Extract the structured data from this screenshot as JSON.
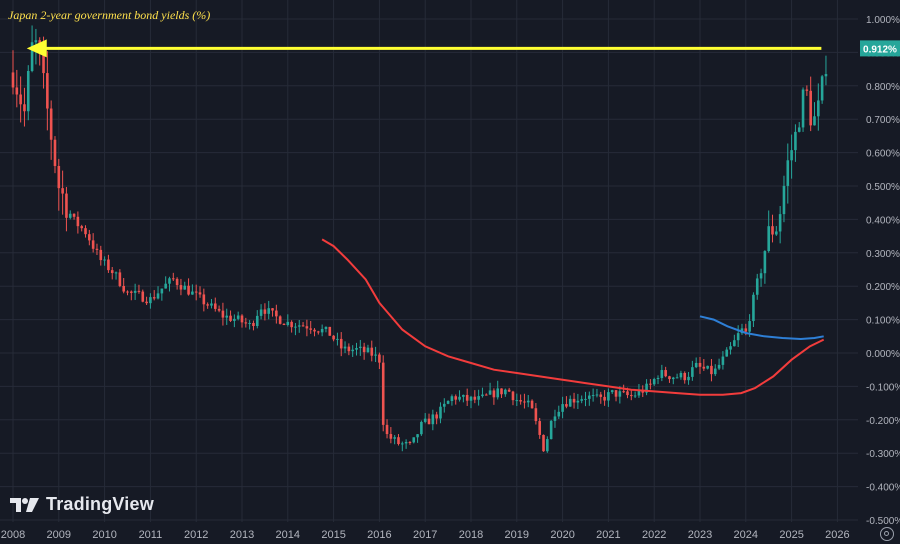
{
  "title": "Japan 2-year government bond yields (%)",
  "brand": {
    "name": "TradingView",
    "logo_icon": "tradingview-logo-icon"
  },
  "price_tag": "0.912%",
  "colors": {
    "background": "#161a25",
    "grid": "#262b38",
    "up": "#26a69a",
    "down": "#ef5350",
    "arrow": "#ffff33",
    "tag_bg": "#26a69a",
    "ma_red": "#f23c3c",
    "ma_blue": "#2e7fd6",
    "axis_text": "#b2b5be"
  },
  "chart_data": {
    "type": "candlestick",
    "title": "Japan 2-year government bond yields (%)",
    "x_ticks": [
      "2008",
      "2009",
      "2010",
      "2011",
      "2012",
      "2013",
      "2014",
      "2015",
      "2016",
      "2017",
      "2018",
      "2019",
      "2020",
      "2021",
      "2022",
      "2023",
      "2024",
      "2025",
      "2026"
    ],
    "y_ticks": [
      "1.000%",
      "0.900%",
      "0.800%",
      "0.700%",
      "0.600%",
      "0.500%",
      "0.400%",
      "0.300%",
      "0.200%",
      "0.100%",
      "0.000%",
      "-0.100%",
      "-0.200%",
      "-0.300%",
      "-0.400%",
      "-0.500%"
    ],
    "ylim": [
      -0.5,
      1.0
    ],
    "xlim": [
      2008.0,
      2026.3
    ],
    "last_value": 0.912,
    "close_path": [
      [
        2008.0,
        0.84
      ],
      [
        2008.25,
        0.72
      ],
      [
        2008.45,
        0.95
      ],
      [
        2008.6,
        0.86
      ],
      [
        2008.8,
        0.68
      ],
      [
        2009.0,
        0.5
      ],
      [
        2009.3,
        0.4
      ],
      [
        2009.6,
        0.36
      ],
      [
        2009.9,
        0.28
      ],
      [
        2010.2,
        0.24
      ],
      [
        2010.5,
        0.18
      ],
      [
        2010.8,
        0.17
      ],
      [
        2011.0,
        0.16
      ],
      [
        2011.3,
        0.2
      ],
      [
        2011.5,
        0.22
      ],
      [
        2011.8,
        0.19
      ],
      [
        2012.2,
        0.15
      ],
      [
        2012.6,
        0.11
      ],
      [
        2012.9,
        0.1
      ],
      [
        2013.2,
        0.08
      ],
      [
        2013.4,
        0.14
      ],
      [
        2013.7,
        0.11
      ],
      [
        2014.0,
        0.09
      ],
      [
        2014.5,
        0.08
      ],
      [
        2014.9,
        0.06
      ],
      [
        2015.2,
        0.01
      ],
      [
        2015.5,
        0.01
      ],
      [
        2015.8,
        0.0
      ],
      [
        2016.0,
        -0.02
      ],
      [
        2016.1,
        -0.24
      ],
      [
        2016.4,
        -0.27
      ],
      [
        2016.7,
        -0.28
      ],
      [
        2016.9,
        -0.22
      ],
      [
        2017.0,
        -0.21
      ],
      [
        2017.3,
        -0.18
      ],
      [
        2017.6,
        -0.13
      ],
      [
        2017.9,
        -0.14
      ],
      [
        2018.2,
        -0.14
      ],
      [
        2018.5,
        -0.12
      ],
      [
        2018.8,
        -0.11
      ],
      [
        2019.0,
        -0.14
      ],
      [
        2019.3,
        -0.16
      ],
      [
        2019.6,
        -0.29
      ],
      [
        2019.8,
        -0.18
      ],
      [
        2020.0,
        -0.15
      ],
      [
        2020.2,
        -0.14
      ],
      [
        2020.5,
        -0.13
      ],
      [
        2020.8,
        -0.14
      ],
      [
        2021.1,
        -0.12
      ],
      [
        2021.5,
        -0.13
      ],
      [
        2021.9,
        -0.1
      ],
      [
        2022.1,
        -0.06
      ],
      [
        2022.4,
        -0.07
      ],
      [
        2022.7,
        -0.07
      ],
      [
        2022.9,
        -0.04
      ],
      [
        2023.1,
        -0.05
      ],
      [
        2023.3,
        -0.06
      ],
      [
        2023.5,
        -0.02
      ],
      [
        2023.7,
        0.02
      ],
      [
        2023.9,
        0.07
      ],
      [
        2024.0,
        0.06
      ],
      [
        2024.2,
        0.18
      ],
      [
        2024.5,
        0.36
      ],
      [
        2024.7,
        0.38
      ],
      [
        2024.9,
        0.56
      ],
      [
        2025.1,
        0.66
      ],
      [
        2025.3,
        0.8
      ],
      [
        2025.45,
        0.68
      ],
      [
        2025.6,
        0.74
      ],
      [
        2025.8,
        0.91
      ]
    ],
    "ma_red": [
      [
        2014.75,
        0.34
      ],
      [
        2015.0,
        0.32
      ],
      [
        2015.3,
        0.28
      ],
      [
        2015.7,
        0.22
      ],
      [
        2016.0,
        0.15
      ],
      [
        2016.5,
        0.07
      ],
      [
        2017.0,
        0.02
      ],
      [
        2017.5,
        -0.01
      ],
      [
        2018.0,
        -0.03
      ],
      [
        2018.5,
        -0.05
      ],
      [
        2019.0,
        -0.06
      ],
      [
        2019.5,
        -0.07
      ],
      [
        2020.0,
        -0.08
      ],
      [
        2020.5,
        -0.09
      ],
      [
        2021.0,
        -0.1
      ],
      [
        2021.5,
        -0.11
      ],
      [
        2022.0,
        -0.115
      ],
      [
        2022.5,
        -0.12
      ],
      [
        2023.0,
        -0.125
      ],
      [
        2023.5,
        -0.125
      ],
      [
        2023.9,
        -0.12
      ],
      [
        2024.2,
        -0.105
      ],
      [
        2024.6,
        -0.07
      ],
      [
        2025.0,
        -0.02
      ],
      [
        2025.4,
        0.02
      ],
      [
        2025.7,
        0.04
      ]
    ],
    "ma_blue": [
      [
        2023.0,
        0.11
      ],
      [
        2023.3,
        0.1
      ],
      [
        2023.6,
        0.08
      ],
      [
        2024.0,
        0.06
      ],
      [
        2024.4,
        0.05
      ],
      [
        2024.8,
        0.045
      ],
      [
        2025.2,
        0.042
      ],
      [
        2025.5,
        0.045
      ],
      [
        2025.7,
        0.05
      ]
    ],
    "annotation_arrow": {
      "from_x": 2025.65,
      "to_x": 2008.3,
      "value": 0.912
    }
  }
}
